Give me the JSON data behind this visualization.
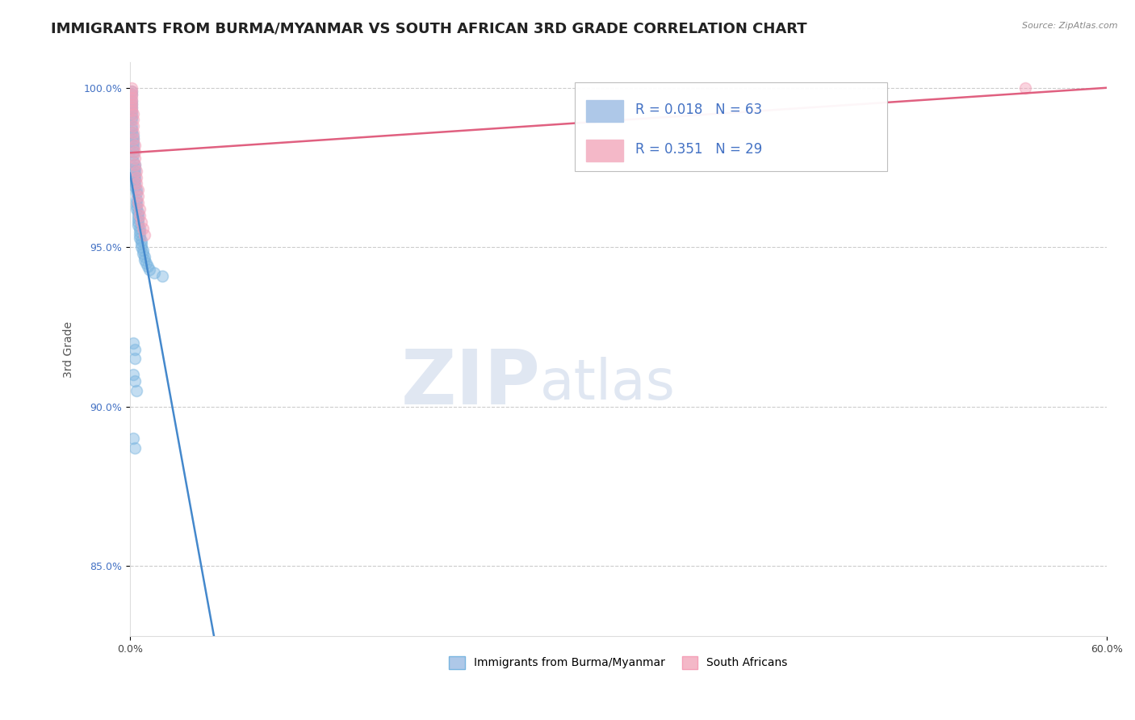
{
  "title": "IMMIGRANTS FROM BURMA/MYANMAR VS SOUTH AFRICAN 3RD GRADE CORRELATION CHART",
  "source": "Source: ZipAtlas.com",
  "ylabel": "3rd Grade",
  "xlim": [
    0.0,
    0.6
  ],
  "ylim": [
    0.828,
    1.008
  ],
  "yticks": [
    0.85,
    0.9,
    0.95,
    1.0
  ],
  "yticklabels": [
    "85.0%",
    "90.0%",
    "95.0%",
    "100.0%"
  ],
  "blue_color": "#7ab5e0",
  "pink_color": "#f4a0b8",
  "blue_scatter": [
    [
      0.001,
      0.999
    ],
    [
      0.001,
      0.998
    ],
    [
      0.001,
      0.996
    ],
    [
      0.001,
      0.995
    ],
    [
      0.001,
      0.994
    ],
    [
      0.001,
      0.993
    ],
    [
      0.001,
      0.992
    ],
    [
      0.001,
      0.991
    ],
    [
      0.001,
      0.99
    ],
    [
      0.001,
      0.988
    ],
    [
      0.001,
      0.987
    ],
    [
      0.001,
      0.986
    ],
    [
      0.002,
      0.985
    ],
    [
      0.002,
      0.984
    ],
    [
      0.002,
      0.983
    ],
    [
      0.002,
      0.982
    ],
    [
      0.002,
      0.981
    ],
    [
      0.002,
      0.98
    ],
    [
      0.002,
      0.979
    ],
    [
      0.002,
      0.977
    ],
    [
      0.003,
      0.976
    ],
    [
      0.003,
      0.975
    ],
    [
      0.003,
      0.974
    ],
    [
      0.003,
      0.973
    ],
    [
      0.003,
      0.972
    ],
    [
      0.003,
      0.971
    ],
    [
      0.003,
      0.97
    ],
    [
      0.003,
      0.969
    ],
    [
      0.004,
      0.968
    ],
    [
      0.004,
      0.967
    ],
    [
      0.004,
      0.965
    ],
    [
      0.004,
      0.964
    ],
    [
      0.004,
      0.963
    ],
    [
      0.004,
      0.962
    ],
    [
      0.005,
      0.961
    ],
    [
      0.005,
      0.96
    ],
    [
      0.005,
      0.959
    ],
    [
      0.005,
      0.958
    ],
    [
      0.005,
      0.957
    ],
    [
      0.006,
      0.956
    ],
    [
      0.006,
      0.955
    ],
    [
      0.006,
      0.954
    ],
    [
      0.006,
      0.953
    ],
    [
      0.007,
      0.952
    ],
    [
      0.007,
      0.951
    ],
    [
      0.007,
      0.95
    ],
    [
      0.008,
      0.949
    ],
    [
      0.008,
      0.948
    ],
    [
      0.009,
      0.947
    ],
    [
      0.009,
      0.946
    ],
    [
      0.01,
      0.945
    ],
    [
      0.011,
      0.944
    ],
    [
      0.012,
      0.943
    ],
    [
      0.015,
      0.942
    ],
    [
      0.02,
      0.941
    ],
    [
      0.002,
      0.92
    ],
    [
      0.003,
      0.918
    ],
    [
      0.003,
      0.915
    ],
    [
      0.002,
      0.91
    ],
    [
      0.003,
      0.908
    ],
    [
      0.004,
      0.905
    ],
    [
      0.002,
      0.89
    ],
    [
      0.003,
      0.887
    ]
  ],
  "pink_scatter": [
    [
      0.001,
      1.0
    ],
    [
      0.001,
      0.999
    ],
    [
      0.001,
      0.998
    ],
    [
      0.001,
      0.997
    ],
    [
      0.001,
      0.996
    ],
    [
      0.001,
      0.995
    ],
    [
      0.001,
      0.994
    ],
    [
      0.001,
      0.993
    ],
    [
      0.002,
      0.992
    ],
    [
      0.002,
      0.99
    ],
    [
      0.002,
      0.988
    ],
    [
      0.002,
      0.986
    ],
    [
      0.002,
      0.984
    ],
    [
      0.003,
      0.982
    ],
    [
      0.003,
      0.98
    ],
    [
      0.003,
      0.978
    ],
    [
      0.003,
      0.976
    ],
    [
      0.004,
      0.974
    ],
    [
      0.004,
      0.972
    ],
    [
      0.004,
      0.97
    ],
    [
      0.005,
      0.968
    ],
    [
      0.005,
      0.966
    ],
    [
      0.005,
      0.964
    ],
    [
      0.006,
      0.962
    ],
    [
      0.006,
      0.96
    ],
    [
      0.007,
      0.958
    ],
    [
      0.008,
      0.956
    ],
    [
      0.009,
      0.954
    ],
    [
      0.55,
      1.0
    ]
  ],
  "watermark_zip": "ZIP",
  "watermark_atlas": "atlas",
  "title_fontsize": 13,
  "axis_label_fontsize": 10,
  "tick_fontsize": 9,
  "grid_color": "#cccccc",
  "r_blue": "0.018",
  "n_blue": "63",
  "r_pink": "0.351",
  "n_pink": "29"
}
